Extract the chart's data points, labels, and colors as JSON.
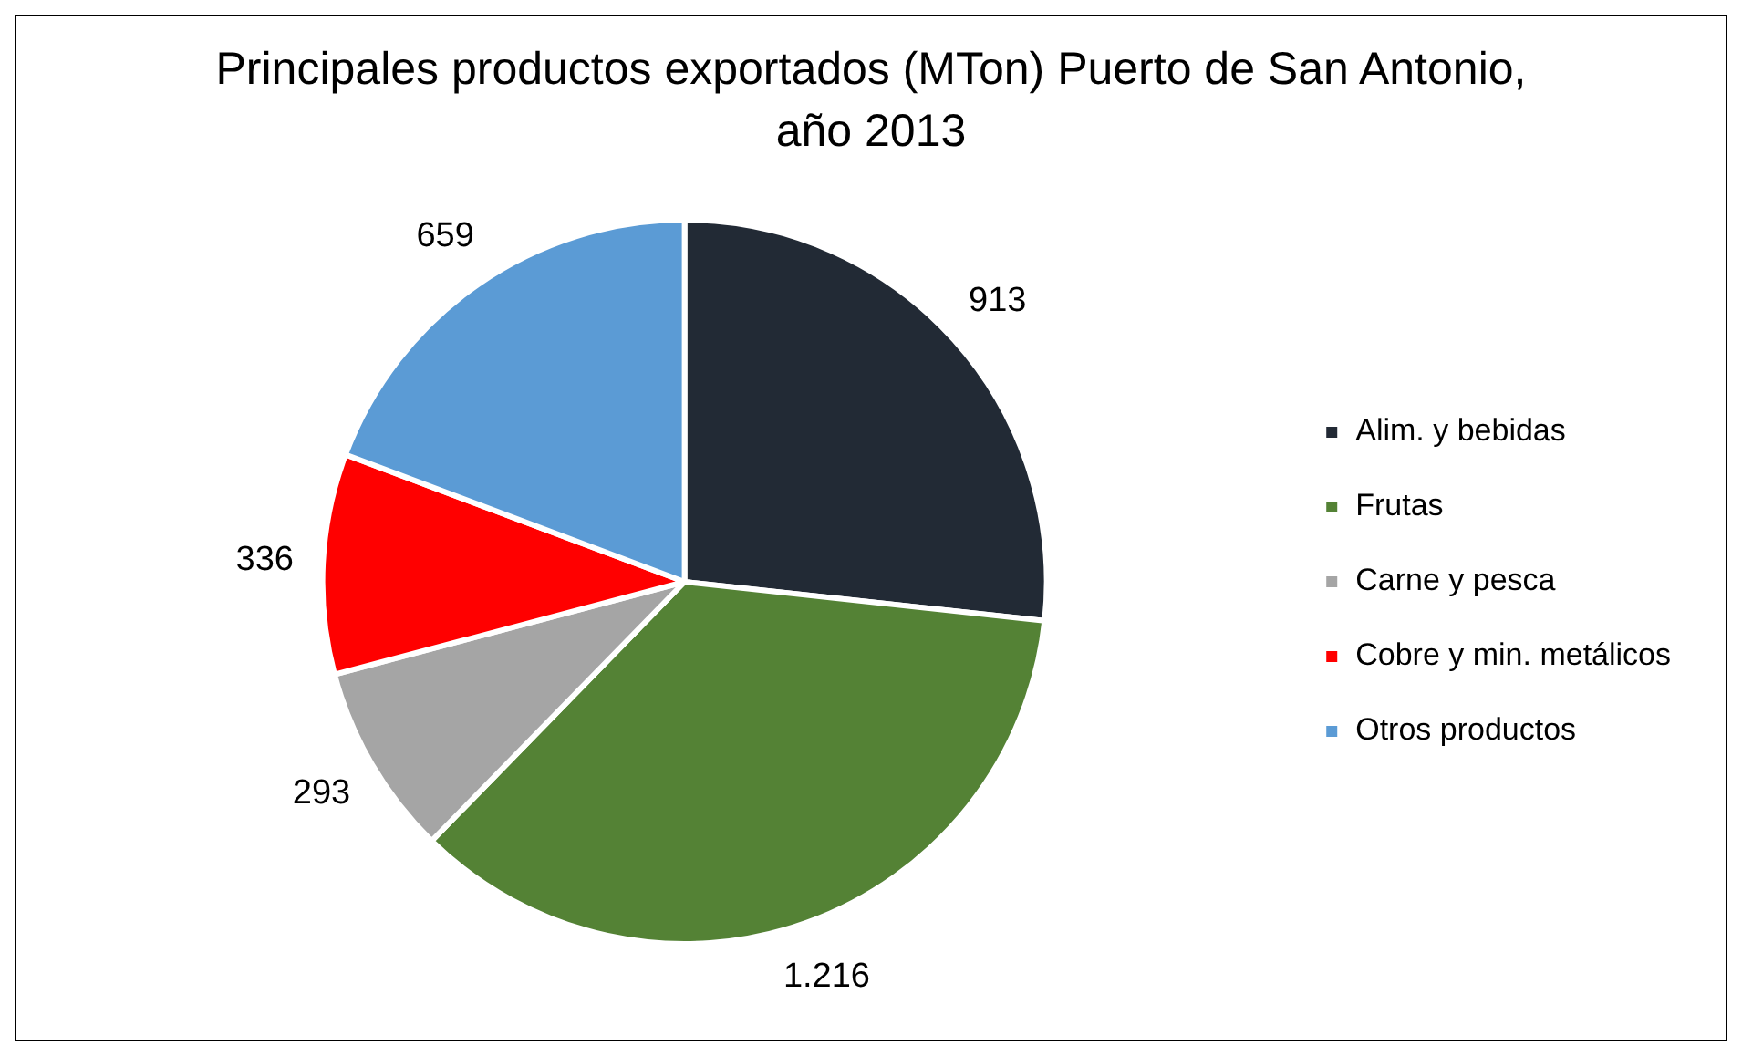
{
  "chart_data": {
    "type": "pie",
    "title": "Principales productos exportados (MTon) Puerto de San Antonio, año 2013",
    "categories": [
      "Alim. y bebidas",
      "Frutas",
      "Carne y pesca",
      "Cobre y min. metálicos",
      "Otros productos"
    ],
    "values": [
      913,
      1216,
      293,
      336,
      659
    ],
    "value_labels": [
      "913",
      "1.216",
      "293",
      "336",
      "659"
    ],
    "colors": [
      "#222a35",
      "#548235",
      "#a5a5a5",
      "#ff0000",
      "#5b9bd5"
    ],
    "legend": "right"
  }
}
